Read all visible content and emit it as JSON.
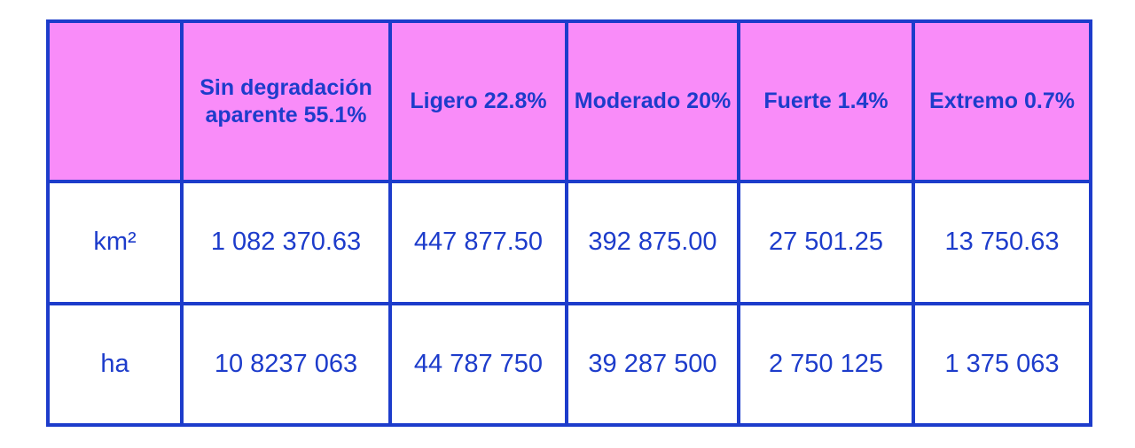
{
  "table": {
    "header": [
      "Sin degradación aparente 55.1%",
      "Ligero 22.8%",
      "Moderado 20%",
      "Fuerte 1.4%",
      "Extremo 0.7%"
    ],
    "rows": [
      [
        "km²",
        "1 082 370.63",
        "447 877.50",
        "392 875.00",
        "27 501.25",
        "13 750.63"
      ],
      [
        "ha",
        "10 8237 063",
        "44 787 750",
        "39 287 500",
        "2 750 125",
        "1 375 063"
      ]
    ]
  }
}
